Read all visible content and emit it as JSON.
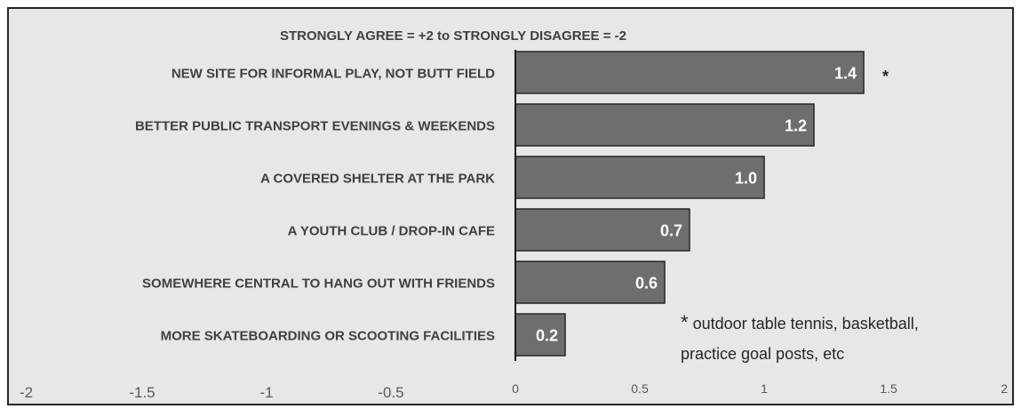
{
  "chart_data": {
    "type": "bar",
    "orientation": "horizontal",
    "title": "STRONGLY AGREE = +2 to STRONGLY DISAGREE = -2",
    "categories": [
      "NEW SITE FOR INFORMAL PLAY, NOT BUTT FIELD",
      "BETTER  PUBLIC TRANSPORT EVENINGS  & WEEKENDS",
      "A COVERED  SHELTER  AT  THE PARK",
      "A YOUTH CLUB / DROP-IN CAFE",
      "SOMEWHERE CENTRAL TO HANG OUT WITH FRIENDS",
      "MORE SKATEBOARDING  OR SCOOTING FACILITIES"
    ],
    "values": [
      1.4,
      1.2,
      1.0,
      0.7,
      0.6,
      0.2
    ],
    "value_labels": [
      "1.4",
      "1.2",
      "1.0",
      "0.7",
      "0.6",
      "0.2"
    ],
    "xlim": [
      -2,
      2
    ],
    "x_ticks": [
      -2,
      -1.5,
      -1,
      -0.5,
      0,
      0.5,
      1,
      1.5,
      2
    ],
    "x_tick_labels": [
      "-2",
      "-1.5",
      "-1",
      "-0.5",
      "0",
      "0.5",
      "1",
      "1.5",
      "2"
    ],
    "grid": false,
    "bar_color": "#6e6e6e",
    "bar_border_color": "#262626",
    "plot_background": "#e7e7e7",
    "marker_label": "*",
    "footnote": {
      "symbol": "*",
      "line1": " outdoor  table tennis,  basketball,",
      "line2": "practice  goal posts, etc"
    }
  }
}
